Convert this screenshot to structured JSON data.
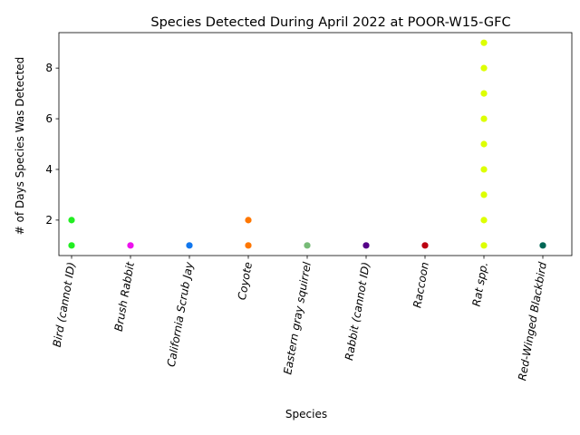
{
  "chart_data": {
    "type": "scatter",
    "title": "Species Detected During April 2022 at POOR-W15-GFC",
    "xlabel": "Species",
    "ylabel": "# of Days Species Was Detected",
    "categories": [
      "Bird (cannot ID)",
      "Brush Rabbit",
      "California Scrub Jay",
      "Coyote",
      "Eastern gray squirrel",
      "Rabbit (cannot ID)",
      "Raccoon",
      "Rat spp.",
      "Red-Winged Blackbird"
    ],
    "colors": [
      "#22ee22",
      "#ee11ee",
      "#1177ee",
      "#ff7700",
      "#77bb77",
      "#550088",
      "#bb0011",
      "#ddff00",
      "#006655"
    ],
    "points": [
      {
        "species": "Bird (cannot ID)",
        "values": [
          1,
          2
        ]
      },
      {
        "species": "Brush Rabbit",
        "values": [
          1
        ]
      },
      {
        "species": "California Scrub Jay",
        "values": [
          1
        ]
      },
      {
        "species": "Coyote",
        "values": [
          1,
          2
        ]
      },
      {
        "species": "Eastern gray squirrel",
        "values": [
          1
        ]
      },
      {
        "species": "Rabbit (cannot ID)",
        "values": [
          1
        ]
      },
      {
        "species": "Raccoon",
        "values": [
          1
        ]
      },
      {
        "species": "Rat spp.",
        "values": [
          1,
          2,
          3,
          4,
          5,
          6,
          7,
          8,
          9
        ]
      },
      {
        "species": "Red-Winged Blackbird",
        "values": [
          1
        ]
      }
    ],
    "yticks": [
      2,
      4,
      6,
      8
    ],
    "ylim": [
      0.6,
      9.4
    ],
    "grid": false,
    "legend": "none"
  }
}
